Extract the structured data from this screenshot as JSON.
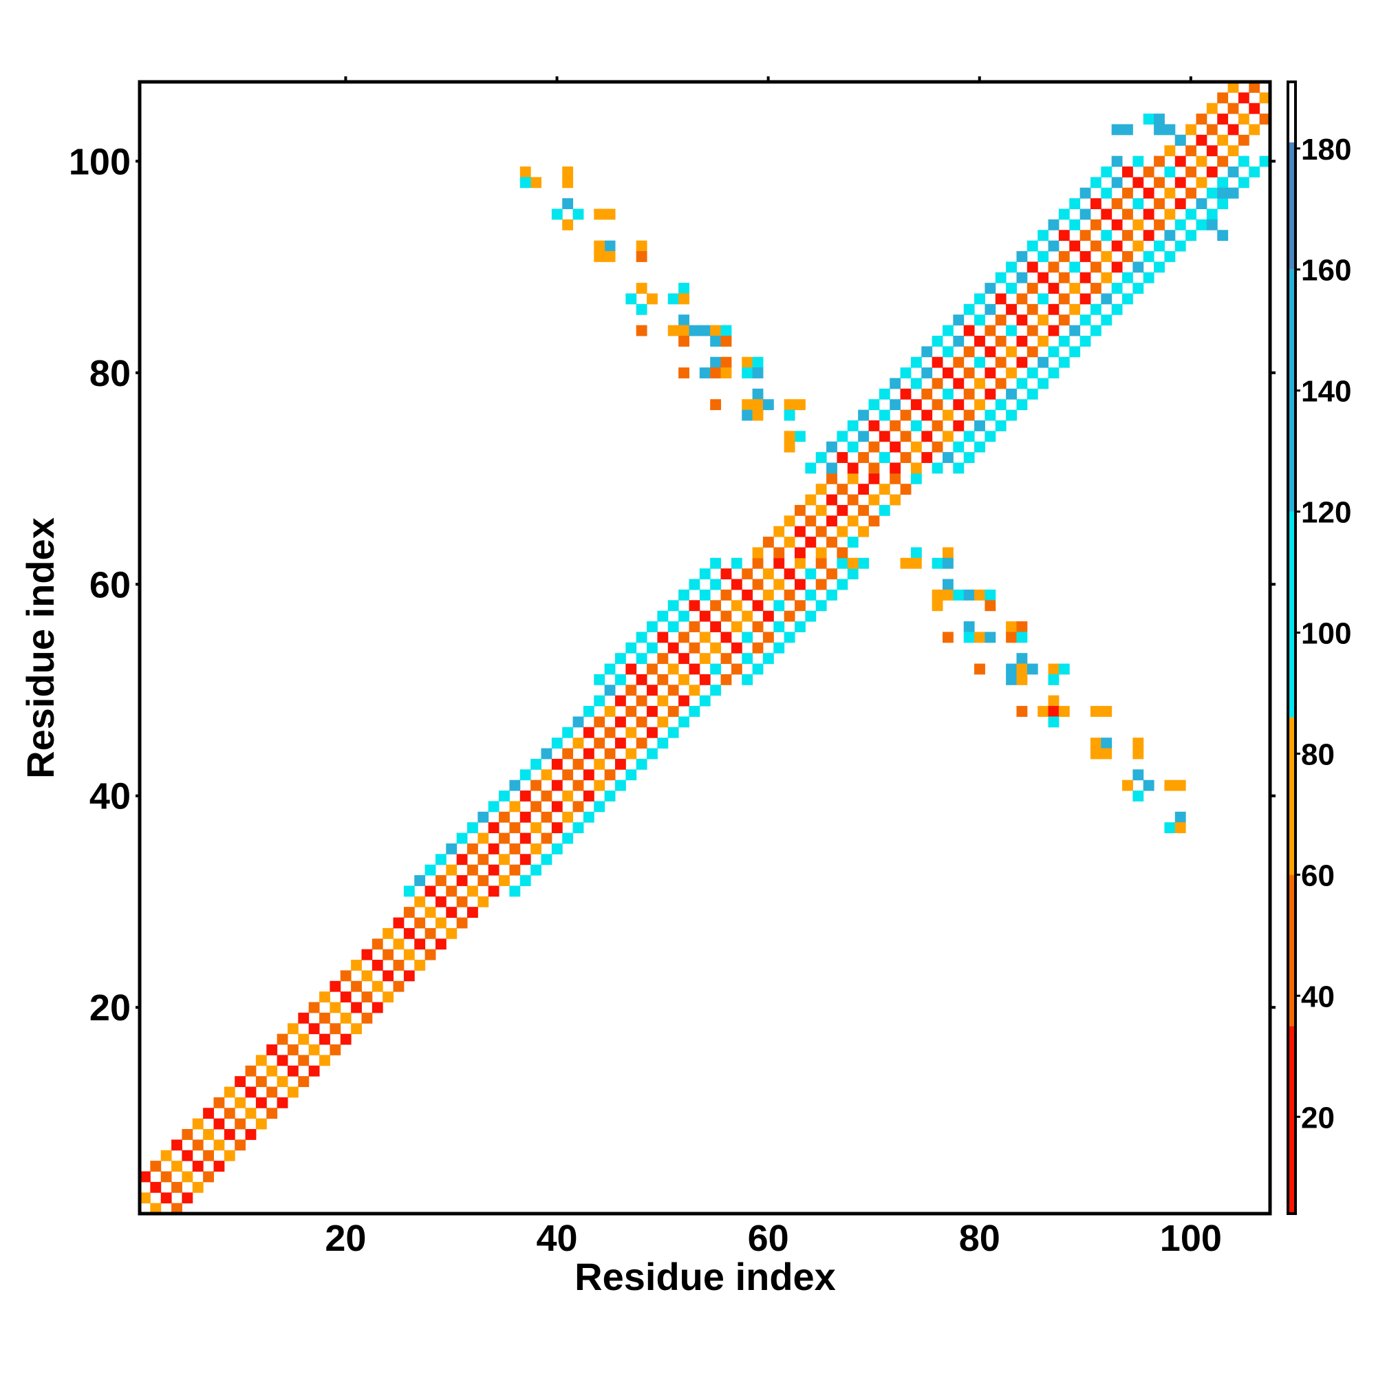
{
  "chart_data": {
    "type": "heatmap",
    "title": "",
    "xlabel": "Residue index",
    "ylabel": "Residue index",
    "xlim": [
      0.5,
      107.5
    ],
    "ylim": [
      0.5,
      107.5
    ],
    "xticks": [
      20,
      40,
      60,
      80,
      100
    ],
    "yticks": [
      20,
      40,
      60,
      80,
      100
    ],
    "grid": false,
    "colorbar": {
      "range": [
        4,
        191
      ],
      "ticks": [
        20,
        40,
        60,
        80,
        100,
        120,
        140,
        160,
        180
      ],
      "bins": [
        [
          4,
          35,
          "#fb1400"
        ],
        [
          35,
          60,
          "#f46a00"
        ],
        [
          60,
          86,
          "#ffa200"
        ],
        [
          86,
          120,
          "#00e5ee"
        ],
        [
          120,
          160,
          "#29b0d8"
        ],
        [
          160,
          181,
          "#4a86c0"
        ],
        [
          181,
          191,
          "#ffffff"
        ]
      ]
    },
    "code_values": {
      "r": 15,
      "o": 50,
      "y": 72,
      "c": 100,
      "b": 140,
      "s": 170
    },
    "band_rows": [
      {
        "from": 1,
        "to": 30,
        "half_width": 3,
        "patterns": [
          "r.o.y.o",
          "o.y.r.r",
          "y.r.o.y"
        ]
      },
      {
        "from": 31,
        "to": 50,
        "half_width": 5,
        "patterns": [
          "c.r.o.y.r.c",
          "b.o.r.o.y.c",
          "c.y.o.r.o.c"
        ]
      },
      {
        "from": 51,
        "to": 62,
        "half_width": 7,
        "patterns": [
          "c.c.r.o.y.r.o.c",
          "c.r.o.y.r.c.o.c",
          "c.c.o.r.y.o.c.c"
        ]
      },
      {
        "from": 63,
        "to": 70,
        "half_width": 4,
        "patterns": [
          "y.o.r.y.o",
          "o.y.r.o.c",
          "y.r.o.y.y"
        ]
      },
      {
        "from": 71,
        "to": 100,
        "half_width": 7,
        "patterns": [
          "c.b.r.o.r.y.c.c",
          "c.r.o.c.o.r.b.c",
          "b.c.o.r.y.o.c.c"
        ]
      },
      {
        "from": 101,
        "to": 107,
        "half_width": 3,
        "patterns": [
          "y.o.r.y",
          "o.r.y.o"
        ]
      }
    ],
    "cells": [
      [
        37,
        99,
        "y"
      ],
      [
        38,
        98,
        "y"
      ],
      [
        37,
        98,
        "c"
      ],
      [
        41,
        99,
        "y"
      ],
      [
        41,
        98,
        "y"
      ],
      [
        40,
        95,
        "c"
      ],
      [
        41,
        96,
        "b"
      ],
      [
        42,
        95,
        "c"
      ],
      [
        41,
        94,
        "y"
      ],
      [
        44,
        95,
        "y"
      ],
      [
        45,
        95,
        "y"
      ],
      [
        45,
        92,
        "b"
      ],
      [
        44,
        92,
        "y"
      ],
      [
        44,
        91,
        "y"
      ],
      [
        45,
        91,
        "y"
      ],
      [
        48,
        92,
        "y"
      ],
      [
        48,
        91,
        "o"
      ],
      [
        48,
        88,
        "y"
      ],
      [
        47,
        87,
        "c"
      ],
      [
        49,
        87,
        "y"
      ],
      [
        48,
        86,
        "c"
      ],
      [
        52,
        88,
        "c"
      ],
      [
        51,
        87,
        "c"
      ],
      [
        52,
        87,
        "y"
      ],
      [
        48,
        84,
        "o"
      ],
      [
        52,
        85,
        "b"
      ],
      [
        51,
        84,
        "y"
      ],
      [
        52,
        84,
        "y"
      ],
      [
        53,
        84,
        "b"
      ],
      [
        54,
        84,
        "b"
      ],
      [
        55,
        84,
        "y"
      ],
      [
        56,
        84,
        "c"
      ],
      [
        52,
        83,
        "o"
      ],
      [
        55,
        83,
        "b"
      ],
      [
        56,
        83,
        "o"
      ],
      [
        55,
        81,
        "b"
      ],
      [
        56,
        81,
        "o"
      ],
      [
        58,
        81,
        "y"
      ],
      [
        59,
        81,
        "c"
      ],
      [
        52,
        80,
        "o"
      ],
      [
        54,
        80,
        "b"
      ],
      [
        55,
        80,
        "o"
      ],
      [
        56,
        80,
        "y"
      ],
      [
        58,
        80,
        "c"
      ],
      [
        59,
        80,
        "b"
      ],
      [
        59,
        78,
        "b"
      ],
      [
        55,
        77,
        "o"
      ],
      [
        58,
        77,
        "y"
      ],
      [
        59,
        77,
        "y"
      ],
      [
        60,
        77,
        "b"
      ],
      [
        62,
        77,
        "y"
      ],
      [
        63,
        77,
        "y"
      ],
      [
        58,
        76,
        "b"
      ],
      [
        59,
        76,
        "y"
      ],
      [
        62,
        76,
        "c"
      ],
      [
        63,
        74,
        "c"
      ],
      [
        62,
        74,
        "y"
      ],
      [
        62,
        73,
        "y"
      ],
      [
        74,
        63,
        "c"
      ],
      [
        73,
        62,
        "y"
      ],
      [
        74,
        62,
        "y"
      ],
      [
        77,
        63,
        "y"
      ],
      [
        76,
        62,
        "c"
      ],
      [
        77,
        62,
        "b"
      ],
      [
        68,
        62,
        "y"
      ],
      [
        77,
        60,
        "b"
      ],
      [
        76,
        59,
        "y"
      ],
      [
        77,
        59,
        "y"
      ],
      [
        78,
        59,
        "c"
      ],
      [
        79,
        59,
        "b"
      ],
      [
        80,
        59,
        "y"
      ],
      [
        81,
        59,
        "c"
      ],
      [
        76,
        58,
        "y"
      ],
      [
        81,
        58,
        "o"
      ],
      [
        79,
        56,
        "b"
      ],
      [
        77,
        55,
        "o"
      ],
      [
        79,
        55,
        "c"
      ],
      [
        80,
        55,
        "y"
      ],
      [
        81,
        55,
        "b"
      ],
      [
        83,
        56,
        "y"
      ],
      [
        84,
        56,
        "o"
      ],
      [
        83,
        55,
        "o"
      ],
      [
        84,
        55,
        "c"
      ],
      [
        84,
        53,
        "b"
      ],
      [
        80,
        52,
        "o"
      ],
      [
        83,
        52,
        "b"
      ],
      [
        84,
        52,
        "y"
      ],
      [
        85,
        52,
        "b"
      ],
      [
        87,
        52,
        "y"
      ],
      [
        88,
        52,
        "c"
      ],
      [
        83,
        51,
        "b"
      ],
      [
        84,
        51,
        "y"
      ],
      [
        87,
        51,
        "c"
      ],
      [
        87,
        49,
        "y"
      ],
      [
        84,
        48,
        "o"
      ],
      [
        86,
        48,
        "y"
      ],
      [
        87,
        48,
        "r"
      ],
      [
        88,
        48,
        "y"
      ],
      [
        91,
        48,
        "y"
      ],
      [
        92,
        48,
        "y"
      ],
      [
        87,
        47,
        "c"
      ],
      [
        91,
        45,
        "y"
      ],
      [
        92,
        45,
        "b"
      ],
      [
        95,
        45,
        "y"
      ],
      [
        91,
        44,
        "y"
      ],
      [
        92,
        44,
        "y"
      ],
      [
        95,
        44,
        "y"
      ],
      [
        95,
        42,
        "b"
      ],
      [
        94,
        41,
        "y"
      ],
      [
        96,
        41,
        "b"
      ],
      [
        98,
        41,
        "y"
      ],
      [
        99,
        41,
        "y"
      ],
      [
        95,
        40,
        "c"
      ],
      [
        99,
        38,
        "b"
      ],
      [
        98,
        37,
        "c"
      ],
      [
        99,
        37,
        "y"
      ],
      [
        93,
        103,
        "b"
      ],
      [
        94,
        103,
        "b"
      ],
      [
        96,
        104,
        "c"
      ],
      [
        97,
        104,
        "b"
      ],
      [
        97,
        103,
        "b"
      ],
      [
        98,
        103,
        "b"
      ],
      [
        99,
        102,
        "b"
      ],
      [
        103,
        97,
        "b"
      ],
      [
        104,
        97,
        "b"
      ],
      [
        102,
        94,
        "b"
      ],
      [
        103,
        93,
        "b"
      ]
    ]
  }
}
